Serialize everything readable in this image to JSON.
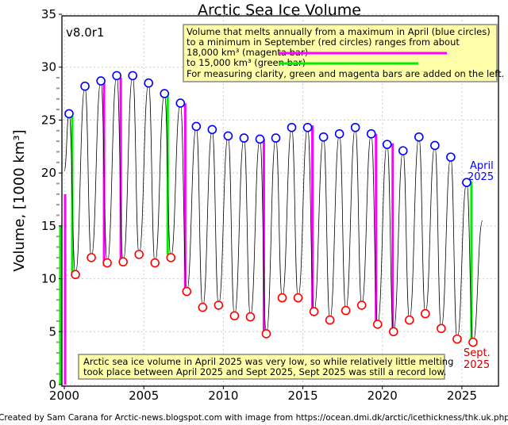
{
  "chart_data": {
    "type": "line",
    "title": "Arctic Sea Ice Volume",
    "version_label": "v8.0r1",
    "ylabel": "Volume, [1000 km³]",
    "xlabel": "",
    "xlim": [
      1999.85,
      2027.3
    ],
    "ylim": [
      0,
      35
    ],
    "grid": true,
    "x_ticks": [
      2000,
      2005,
      2010,
      2015,
      2020,
      2025
    ],
    "y_ticks": [
      0,
      5,
      10,
      15,
      20,
      25,
      30,
      35
    ],
    "series": [
      {
        "name": "April maximum (blue circles)",
        "color": "#0000ff",
        "x": [
          2000.3,
          2001.3,
          2002.3,
          2003.3,
          2004.3,
          2005.3,
          2006.3,
          2007.3,
          2008.3,
          2009.3,
          2010.3,
          2011.3,
          2012.3,
          2013.3,
          2014.3,
          2015.3,
          2016.3,
          2017.3,
          2018.3,
          2019.3,
          2020.3,
          2021.3,
          2022.3,
          2023.3,
          2024.3,
          2025.3
        ],
        "values": [
          25.6,
          28.2,
          28.7,
          29.2,
          29.2,
          28.5,
          27.5,
          26.6,
          24.4,
          24.1,
          23.5,
          23.3,
          23.2,
          23.3,
          24.3,
          24.3,
          23.4,
          23.7,
          24.3,
          23.7,
          22.7,
          22.1,
          23.4,
          22.6,
          21.5,
          19.1
        ]
      },
      {
        "name": "September minimum (red circles)",
        "color": "#ff0000",
        "x": [
          2000.7,
          2001.7,
          2002.7,
          2003.7,
          2004.7,
          2005.7,
          2006.7,
          2007.7,
          2008.7,
          2009.7,
          2010.7,
          2011.7,
          2012.7,
          2013.7,
          2014.7,
          2015.7,
          2016.7,
          2017.7,
          2018.7,
          2019.7,
          2020.7,
          2021.7,
          2022.7,
          2023.7,
          2024.7,
          2025.7
        ],
        "values": [
          10.4,
          12.0,
          11.5,
          11.6,
          12.3,
          11.5,
          12.0,
          8.8,
          7.3,
          7.5,
          6.5,
          6.4,
          4.8,
          8.2,
          8.2,
          6.9,
          6.1,
          7.0,
          7.5,
          5.7,
          5.0,
          6.1,
          6.7,
          5.3,
          4.3,
          4.0
        ]
      }
    ],
    "line_start": {
      "x": 2000.0,
      "value": 20.2
    },
    "line_end": {
      "x": 2026.3,
      "value": 15.5
    },
    "bars": [
      {
        "color": "#00ee00",
        "x": 1999.75,
        "from": 0,
        "to": 15
      },
      {
        "color": "#ff00ff",
        "x": 2000.05,
        "from": 0,
        "to": 18
      },
      {
        "color": "#00ee00",
        "x": 2000.5,
        "from": 25.4,
        "to": 10.5
      },
      {
        "color": "#ff00ff",
        "x": 2002.5,
        "from": 28.7,
        "to": 11.2
      },
      {
        "color": "#ff00ff",
        "x": 2003.55,
        "from": 29.0,
        "to": 11.5
      },
      {
        "color": "#00ee00",
        "x": 2006.5,
        "from": 27.3,
        "to": 12.3
      },
      {
        "color": "#ff00ff",
        "x": 2007.6,
        "from": 26.6,
        "to": 8.6
      },
      {
        "color": "#ff00ff",
        "x": 2012.55,
        "from": 23.2,
        "to": 4.9
      },
      {
        "color": "#ff00ff",
        "x": 2015.6,
        "from": 24.5,
        "to": 6.5
      },
      {
        "color": "#ff00ff",
        "x": 2019.6,
        "from": 23.7,
        "to": 5.7
      },
      {
        "color": "#ff00ff",
        "x": 2020.65,
        "from": 22.8,
        "to": 4.8
      },
      {
        "color": "#00ee00",
        "x": 2025.6,
        "from": 19.2,
        "to": 4.2
      }
    ],
    "legend": {
      "lines": [
        "Volume that melts annually from a maximum in April (blue circles)",
        "to a minimum in September (red circles) ranges from about",
        "18,000 km³ (magenta bar)",
        "to 15,000 km³ (green bar)",
        "For measuring clarity, green and magenta bars are added on the left."
      ],
      "placement": "top-right"
    },
    "annotations": {
      "april_label": [
        "April",
        "2025"
      ],
      "sept_label": [
        "Sept.",
        "2025"
      ],
      "note": [
        "Arctic sea ice volume in April 2025 was very low, so while relatively little melting",
        "took place between April 2025 and Sept 2025, Sept 2025 was still a record low."
      ]
    },
    "credit": "Created by Sam Carana for Arctic-news.blogspot.com with image from https://ocean.dmi.dk/arctic/icethickness/thk.uk.php"
  }
}
